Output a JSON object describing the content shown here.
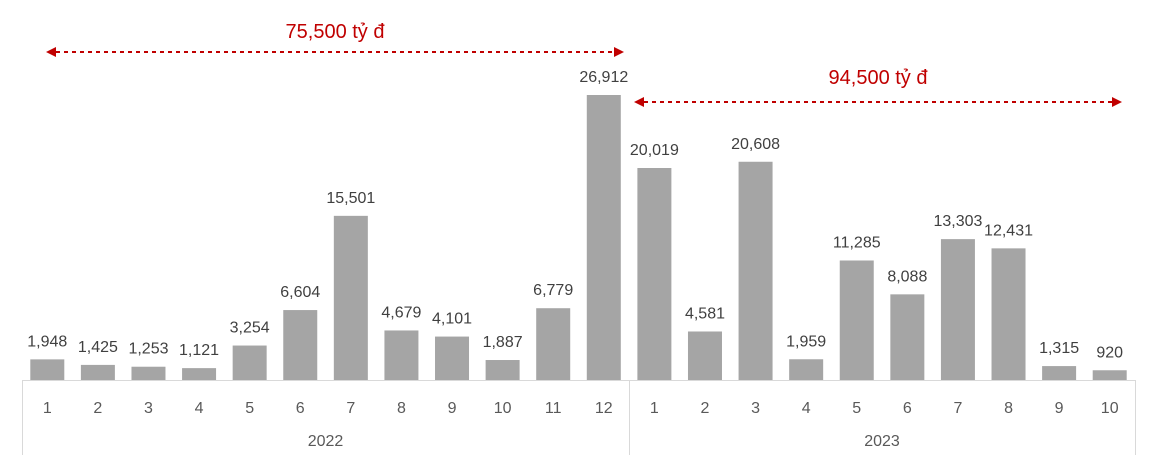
{
  "chart_data": {
    "type": "bar",
    "groups": [
      {
        "label": "2022",
        "categories": [
          "1",
          "2",
          "3",
          "4",
          "5",
          "6",
          "7",
          "8",
          "9",
          "10",
          "11",
          "12"
        ]
      },
      {
        "label": "2023",
        "categories": [
          "1",
          "2",
          "3",
          "4",
          "5",
          "6",
          "7",
          "8",
          "9",
          "10"
        ]
      }
    ],
    "values": [
      1948,
      1425,
      1253,
      1121,
      3254,
      6604,
      15501,
      4679,
      4101,
      1887,
      6779,
      26912,
      20019,
      4581,
      20608,
      1959,
      11285,
      8088,
      13303,
      12431,
      1315,
      920
    ],
    "value_labels": [
      "1,948",
      "1,425",
      "1,253",
      "1,121",
      "3,254",
      "6,604",
      "15,501",
      "4,679",
      "4,101",
      "1,887",
      "6,779",
      "26,912",
      "20,019",
      "4,581",
      "20,608",
      "1,959",
      "11,285",
      "8,088",
      "13,303",
      "12,431",
      "1,315",
      "920"
    ],
    "annotations": [
      {
        "text": "75,500 tỷ đ",
        "from_index": 0,
        "to_index": 11
      },
      {
        "text": "94,500 tỷ đ",
        "from_index": 12,
        "to_index": 21
      }
    ],
    "title": "",
    "xlabel": "",
    "ylabel": "",
    "grid": false,
    "legend": "none",
    "colors": {
      "bar": "#a5a5a5",
      "annotation": "#c00000",
      "axis": "#d9d9d9"
    }
  }
}
